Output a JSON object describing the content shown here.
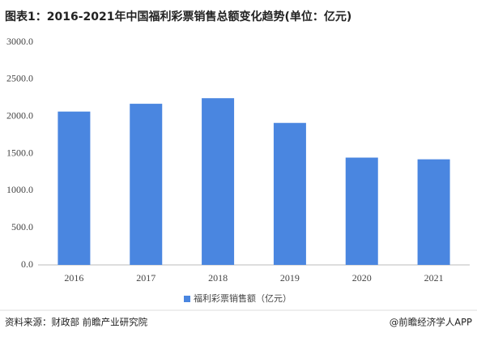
{
  "chart_data": {
    "type": "bar",
    "title": "图表1：2016-2021年中国福利彩票销售总额变化趋势(单位：亿元)",
    "categories": [
      "2016",
      "2017",
      "2018",
      "2019",
      "2020",
      "2021"
    ],
    "series": [
      {
        "name": "福利彩票销售额（亿元）",
        "color": "#4a86e0",
        "values": [
          2065,
          2170,
          2245,
          1912,
          1445,
          1422
        ]
      }
    ],
    "ylim": [
      0,
      3000
    ],
    "yticks": [
      {
        "value": 0,
        "label": "0.0"
      },
      {
        "value": 500,
        "label": "500.0"
      },
      {
        "value": 1000,
        "label": "1000.0"
      },
      {
        "value": 1500,
        "label": "1500.0"
      },
      {
        "value": 2000,
        "label": "2000.0"
      },
      {
        "value": 2500,
        "label": "2500.0"
      },
      {
        "value": 3000,
        "label": "3000.0"
      }
    ],
    "grid": false,
    "legend": "bottom",
    "source": "资料来源：财政部 前瞻产业研究院",
    "credit": "@前瞻经济学人APP"
  }
}
